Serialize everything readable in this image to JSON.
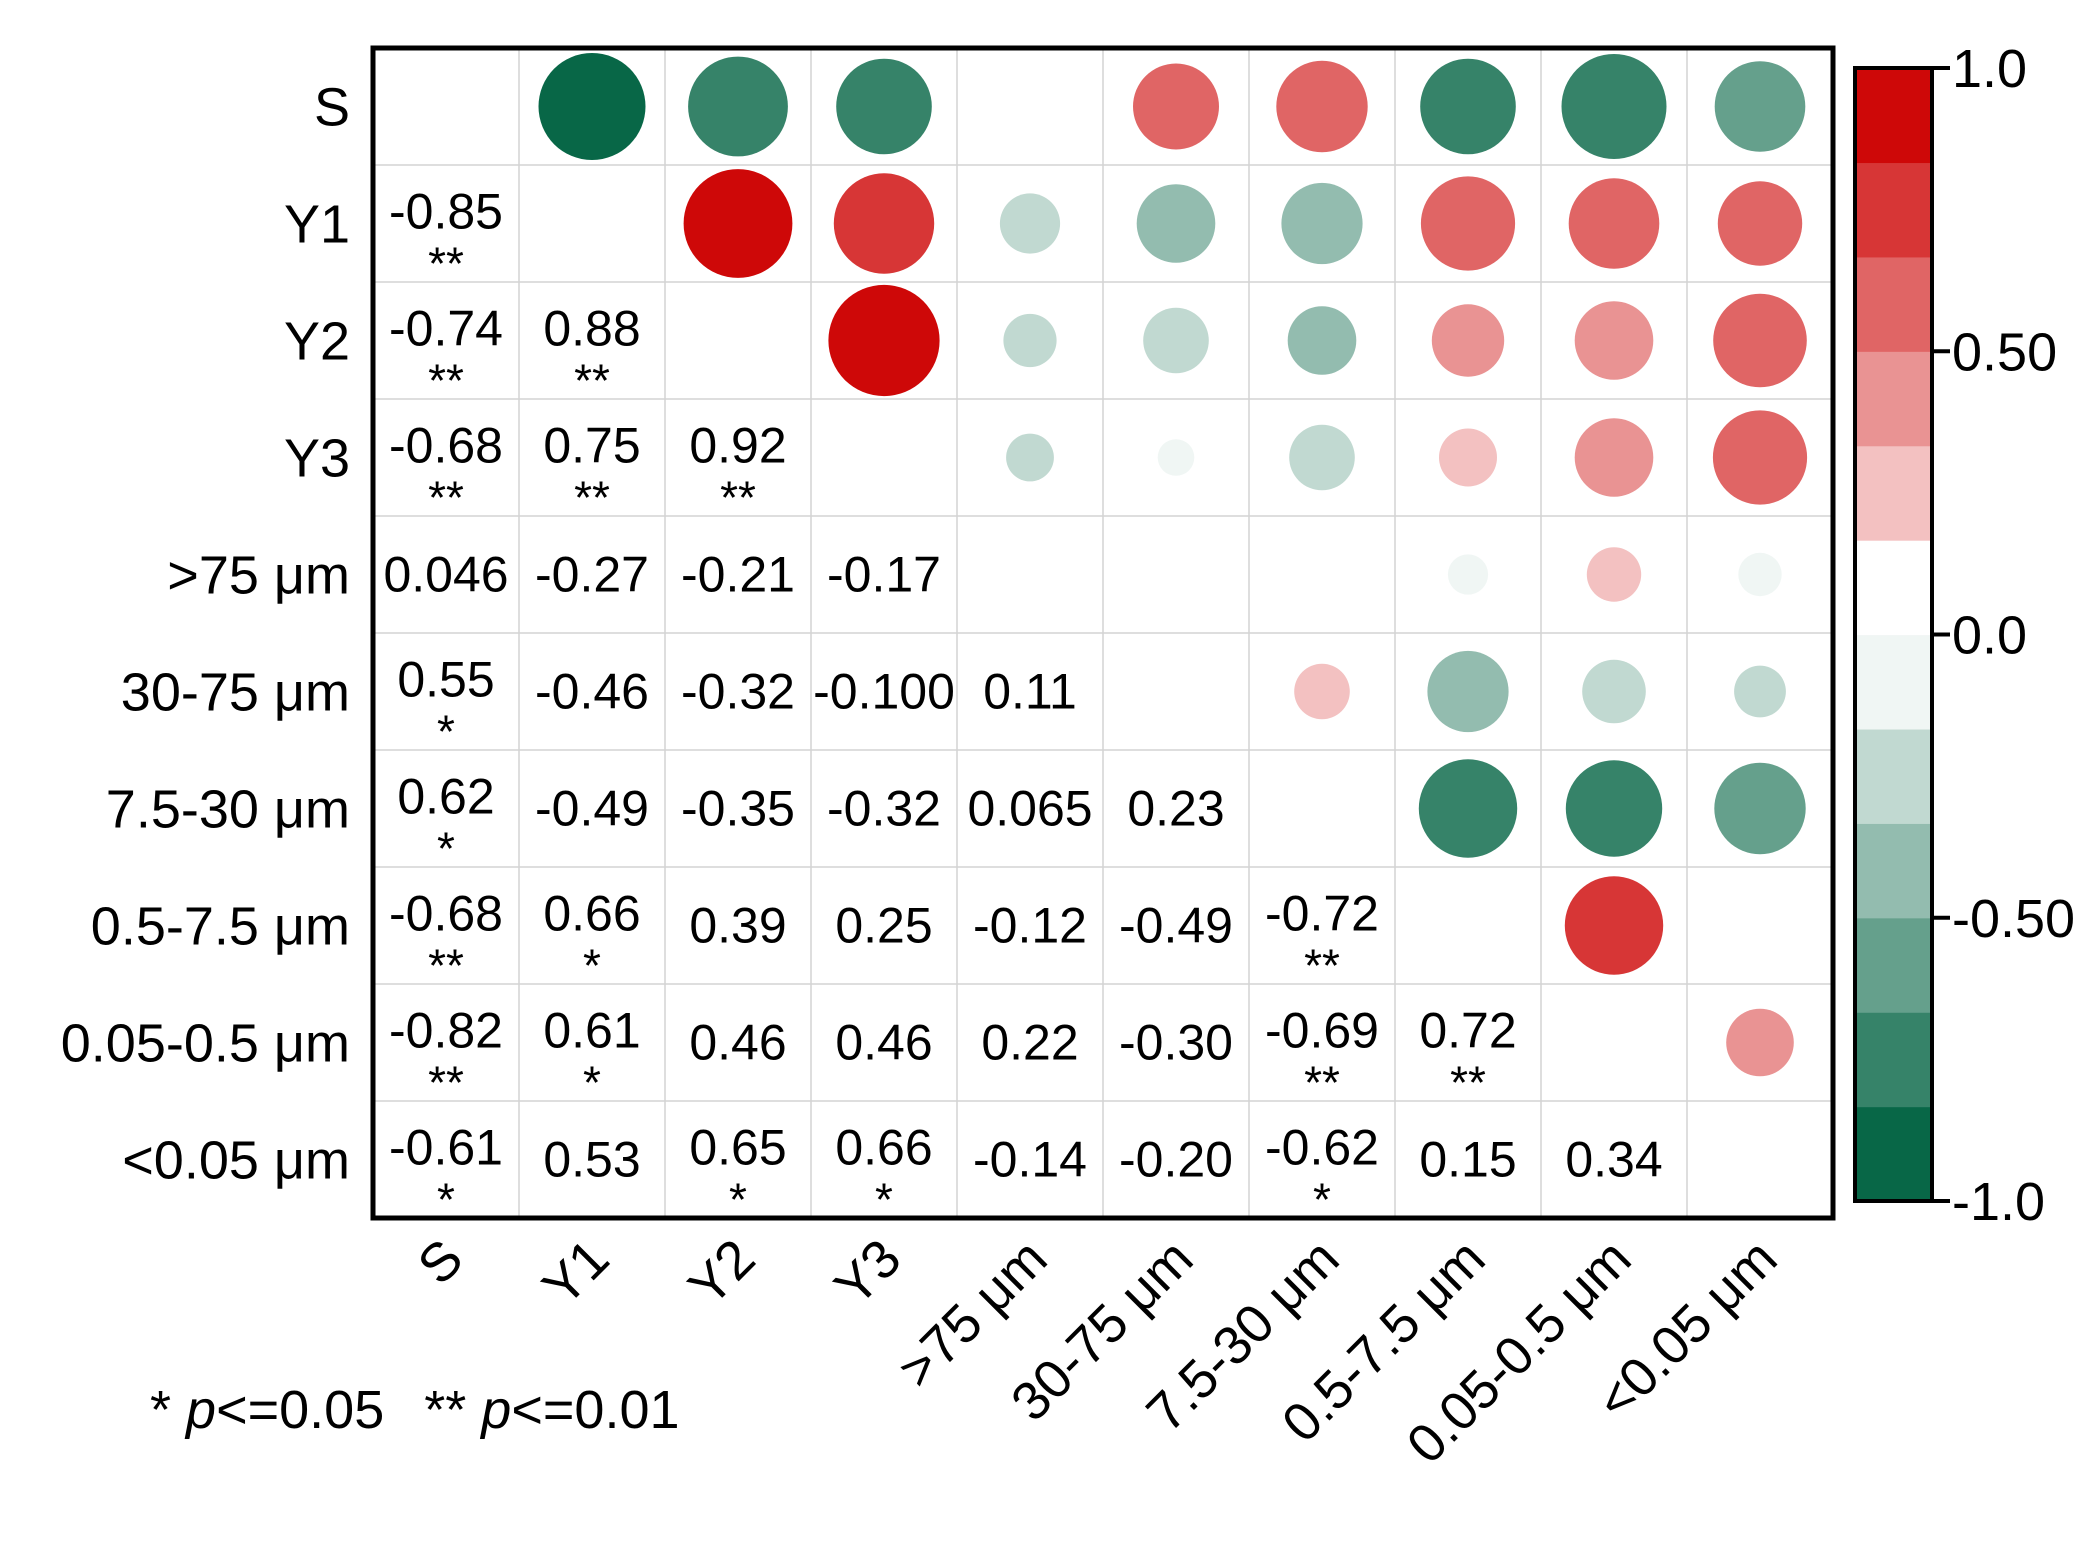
{
  "chart_data": {
    "type": "heatmap",
    "title": "",
    "xlabel": "",
    "ylabel": "",
    "variables": [
      "S",
      "Y1",
      "Y2",
      "Y3",
      ">75 μm",
      "30-75 μm",
      "7.5-30 μm",
      "0.5-7.5 μm",
      "0.05-0.5 μm",
      "<0.05 μm"
    ],
    "lower_triangle": "correlation coefficient text with significance stars",
    "upper_triangle": "circles sized and colored by correlation",
    "cells": [
      {
        "row": "Y1",
        "col": "S",
        "r": -0.85,
        "label": "-0.85",
        "sig": "**"
      },
      {
        "row": "Y2",
        "col": "S",
        "r": -0.74,
        "label": "-0.74",
        "sig": "**"
      },
      {
        "row": "Y2",
        "col": "Y1",
        "r": 0.88,
        "label": "0.88",
        "sig": "**"
      },
      {
        "row": "Y3",
        "col": "S",
        "r": -0.68,
        "label": "-0.68",
        "sig": "**"
      },
      {
        "row": "Y3",
        "col": "Y1",
        "r": 0.75,
        "label": "0.75",
        "sig": "**"
      },
      {
        "row": "Y3",
        "col": "Y2",
        "r": 0.92,
        "label": "0.92",
        "sig": "**"
      },
      {
        "row": ">75 μm",
        "col": "S",
        "r": 0.046,
        "label": "0.046",
        "sig": ""
      },
      {
        "row": ">75 μm",
        "col": "Y1",
        "r": -0.27,
        "label": "-0.27",
        "sig": ""
      },
      {
        "row": ">75 μm",
        "col": "Y2",
        "r": -0.21,
        "label": "-0.21",
        "sig": ""
      },
      {
        "row": ">75 μm",
        "col": "Y3",
        "r": -0.17,
        "label": "-0.17",
        "sig": ""
      },
      {
        "row": "30-75 μm",
        "col": "S",
        "r": 0.55,
        "label": "0.55",
        "sig": "*"
      },
      {
        "row": "30-75 μm",
        "col": "Y1",
        "r": -0.46,
        "label": "-0.46",
        "sig": ""
      },
      {
        "row": "30-75 μm",
        "col": "Y2",
        "r": -0.32,
        "label": "-0.32",
        "sig": ""
      },
      {
        "row": "30-75 μm",
        "col": "Y3",
        "r": -0.1,
        "label": "-0.100",
        "sig": ""
      },
      {
        "row": "30-75 μm",
        "col": ">75 μm",
        "r": 0.11,
        "label": "0.11",
        "sig": ""
      },
      {
        "row": "7.5-30 μm",
        "col": "S",
        "r": 0.62,
        "label": "0.62",
        "sig": "*"
      },
      {
        "row": "7.5-30 μm",
        "col": "Y1",
        "r": -0.49,
        "label": "-0.49",
        "sig": ""
      },
      {
        "row": "7.5-30 μm",
        "col": "Y2",
        "r": -0.35,
        "label": "-0.35",
        "sig": ""
      },
      {
        "row": "7.5-30 μm",
        "col": "Y3",
        "r": -0.32,
        "label": "-0.32",
        "sig": ""
      },
      {
        "row": "7.5-30 μm",
        "col": ">75 μm",
        "r": 0.065,
        "label": "0.065",
        "sig": ""
      },
      {
        "row": "7.5-30 μm",
        "col": "30-75 μm",
        "r": 0.23,
        "label": "0.23",
        "sig": ""
      },
      {
        "row": "0.5-7.5 μm",
        "col": "S",
        "r": -0.68,
        "label": "-0.68",
        "sig": "**"
      },
      {
        "row": "0.5-7.5 μm",
        "col": "Y1",
        "r": 0.66,
        "label": "0.66",
        "sig": "*"
      },
      {
        "row": "0.5-7.5 μm",
        "col": "Y2",
        "r": 0.39,
        "label": "0.39",
        "sig": ""
      },
      {
        "row": "0.5-7.5 μm",
        "col": "Y3",
        "r": 0.25,
        "label": "0.25",
        "sig": ""
      },
      {
        "row": "0.5-7.5 μm",
        "col": ">75 μm",
        "r": -0.12,
        "label": "-0.12",
        "sig": ""
      },
      {
        "row": "0.5-7.5 μm",
        "col": "30-75 μm",
        "r": -0.49,
        "label": "-0.49",
        "sig": ""
      },
      {
        "row": "0.5-7.5 μm",
        "col": "7.5-30 μm",
        "r": -0.72,
        "label": "-0.72",
        "sig": "**"
      },
      {
        "row": "0.05-0.5 μm",
        "col": "S",
        "r": -0.82,
        "label": "-0.82",
        "sig": "**"
      },
      {
        "row": "0.05-0.5 μm",
        "col": "Y1",
        "r": 0.61,
        "label": "0.61",
        "sig": "*"
      },
      {
        "row": "0.05-0.5 μm",
        "col": "Y2",
        "r": 0.46,
        "label": "0.46",
        "sig": ""
      },
      {
        "row": "0.05-0.5 μm",
        "col": "Y3",
        "r": 0.46,
        "label": "0.46",
        "sig": ""
      },
      {
        "row": "0.05-0.5 μm",
        "col": ">75 μm",
        "r": 0.22,
        "label": "0.22",
        "sig": ""
      },
      {
        "row": "0.05-0.5 μm",
        "col": "30-75 μm",
        "r": -0.3,
        "label": "-0.30",
        "sig": ""
      },
      {
        "row": "0.05-0.5 μm",
        "col": "7.5-30 μm",
        "r": -0.69,
        "label": "-0.69",
        "sig": "**"
      },
      {
        "row": "0.05-0.5 μm",
        "col": "0.5-7.5 μm",
        "r": 0.72,
        "label": "0.72",
        "sig": "**"
      },
      {
        "row": "<0.05 μm",
        "col": "S",
        "r": -0.61,
        "label": "-0.61",
        "sig": "*"
      },
      {
        "row": "<0.05 μm",
        "col": "Y1",
        "r": 0.53,
        "label": "0.53",
        "sig": ""
      },
      {
        "row": "<0.05 μm",
        "col": "Y2",
        "r": 0.65,
        "label": "0.65",
        "sig": "*"
      },
      {
        "row": "<0.05 μm",
        "col": "Y3",
        "r": 0.66,
        "label": "0.66",
        "sig": "*"
      },
      {
        "row": "<0.05 μm",
        "col": ">75 μm",
        "r": -0.14,
        "label": "-0.14",
        "sig": ""
      },
      {
        "row": "<0.05 μm",
        "col": "30-75 μm",
        "r": -0.2,
        "label": "-0.20",
        "sig": ""
      },
      {
        "row": "<0.05 μm",
        "col": "7.5-30 μm",
        "r": -0.62,
        "label": "-0.62",
        "sig": "*"
      },
      {
        "row": "<0.05 μm",
        "col": "0.5-7.5 μm",
        "r": 0.15,
        "label": "0.15",
        "sig": ""
      },
      {
        "row": "<0.05 μm",
        "col": "0.05-0.5 μm",
        "r": 0.34,
        "label": "0.34",
        "sig": ""
      }
    ],
    "colorbar": {
      "range": [
        -1.0,
        1.0
      ],
      "tick_values": [
        1.0,
        0.5,
        0.0,
        -0.5,
        -1.0
      ],
      "tick_labels": [
        "1.0",
        "0.50",
        "0.0",
        "-0.50",
        "-1.0"
      ],
      "bins": 12,
      "negative_color": "#006241",
      "positive_color": "#cc0000",
      "neutral_color": "#ffffff"
    },
    "footnote": {
      "single_star": "* ",
      "double_star": "** ",
      "p_symbol": "p",
      "single_threshold": "<=0.05",
      "double_threshold": "<=0.01"
    }
  }
}
